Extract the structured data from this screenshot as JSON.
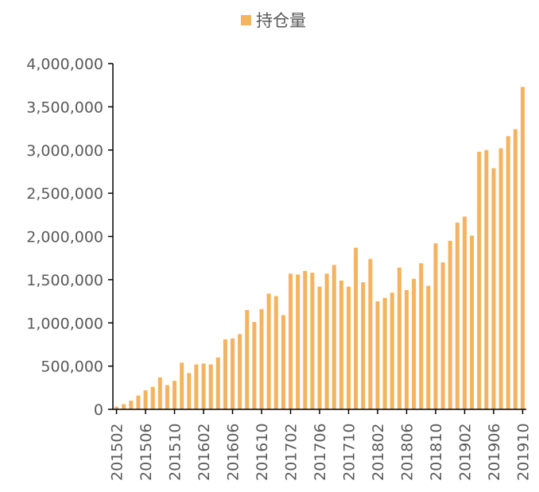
{
  "colors": {
    "bar": "#F4B35E",
    "axis": "#000000",
    "text": "#595959"
  },
  "chart_data": {
    "type": "bar",
    "legend": {
      "label": "持仓量",
      "position": "top"
    },
    "grid": false,
    "ylim": [
      0,
      4000000
    ],
    "yticks": [
      "0",
      "500,000",
      "1,000,000",
      "1,500,000",
      "2,000,000",
      "2,500,000",
      "3,000,000",
      "3,500,000",
      "4,000,000"
    ],
    "xtick_labels": [
      "201502",
      "201506",
      "201510",
      "201602",
      "201606",
      "201610",
      "201702",
      "201706",
      "201710",
      "201802",
      "201806",
      "201810",
      "201902",
      "201906",
      "201910"
    ],
    "categories": [
      "201502",
      "201503",
      "201504",
      "201505",
      "201506",
      "201507",
      "201508",
      "201509",
      "201510",
      "201511",
      "201512",
      "201601",
      "201602",
      "201603",
      "201604",
      "201605",
      "201606",
      "201607",
      "201608",
      "201609",
      "201610",
      "201611",
      "201612",
      "201701",
      "201702",
      "201703",
      "201704",
      "201705",
      "201706",
      "201707",
      "201708",
      "201709",
      "201710",
      "201711",
      "201712",
      "201801",
      "201802",
      "201803",
      "201804",
      "201805",
      "201806",
      "201807",
      "201808",
      "201809",
      "201810",
      "201811",
      "201812",
      "201901",
      "201902",
      "201903",
      "201904",
      "201905",
      "201906",
      "201907",
      "201908",
      "201909",
      "201910"
    ],
    "series": [
      {
        "name": "持仓量",
        "values": [
          30000,
          60000,
          100000,
          160000,
          220000,
          260000,
          370000,
          280000,
          330000,
          540000,
          420000,
          520000,
          530000,
          520000,
          600000,
          810000,
          820000,
          870000,
          1150000,
          1010000,
          1160000,
          1340000,
          1310000,
          1090000,
          1570000,
          1560000,
          1600000,
          1580000,
          1420000,
          1570000,
          1670000,
          1490000,
          1420000,
          1870000,
          1470000,
          1740000,
          1250000,
          1290000,
          1350000,
          1640000,
          1380000,
          1510000,
          1690000,
          1430000,
          1920000,
          1700000,
          1950000,
          2160000,
          2230000,
          2010000,
          2980000,
          3000000,
          2790000,
          3020000,
          3160000,
          3240000,
          3730000
        ]
      }
    ]
  }
}
